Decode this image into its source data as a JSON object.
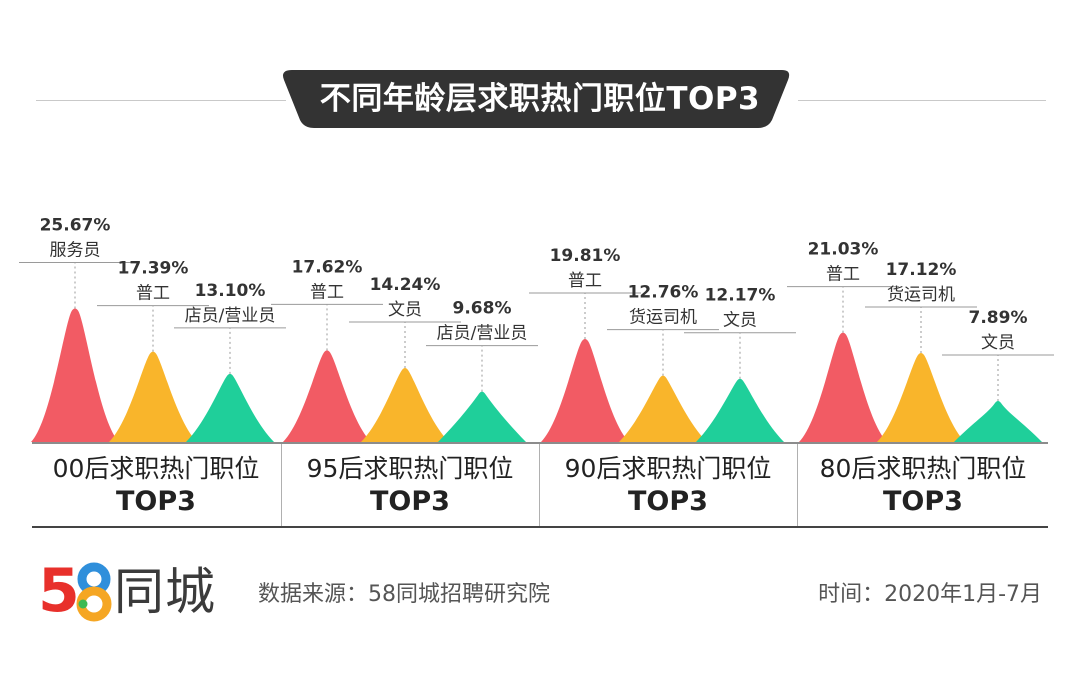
{
  "title": "不同年龄层求职热门职位TOP3",
  "colors": {
    "first": "#f25b64",
    "second": "#f9b52b",
    "third": "#1fcf9a",
    "banner": "#333333"
  },
  "chart_data": {
    "type": "area",
    "title": "不同年龄层求职热门职位TOP3",
    "groups": [
      {
        "label": "00后求职热门职位",
        "sublabel": "TOP3",
        "jobs": [
          {
            "name": "服务员",
            "value": 25.67,
            "label": "25.67%"
          },
          {
            "name": "普工",
            "value": 17.39,
            "label": "17.39%"
          },
          {
            "name": "店员/营业员",
            "value": 13.1,
            "label": "13.10%"
          }
        ]
      },
      {
        "label": "95后求职热门职位",
        "sublabel": "TOP3",
        "jobs": [
          {
            "name": "普工",
            "value": 17.62,
            "label": "17.62%"
          },
          {
            "name": "文员",
            "value": 14.24,
            "label": "14.24%"
          },
          {
            "name": "店员/营业员",
            "value": 9.68,
            "label": "9.68%"
          }
        ]
      },
      {
        "label": "90后求职热门职位",
        "sublabel": "TOP3",
        "jobs": [
          {
            "name": "普工",
            "value": 19.81,
            "label": "19.81%"
          },
          {
            "name": "货运司机",
            "value": 12.76,
            "label": "12.76%"
          },
          {
            "name": "文员",
            "value": 12.17,
            "label": "12.17%"
          }
        ]
      },
      {
        "label": "80后求职热门职位",
        "sublabel": "TOP3",
        "jobs": [
          {
            "name": "普工",
            "value": 21.03,
            "label": "21.03%"
          },
          {
            "name": "货运司机",
            "value": 17.12,
            "label": "17.12%"
          },
          {
            "name": "文员",
            "value": 7.89,
            "label": "7.89%"
          }
        ]
      }
    ]
  },
  "footer": {
    "logo_digit_5": "5",
    "logo_digit_8": "8",
    "logo_name": "同城",
    "source": "数据来源：58同城招聘研究院",
    "time": "时间：2020年1月-7月"
  }
}
